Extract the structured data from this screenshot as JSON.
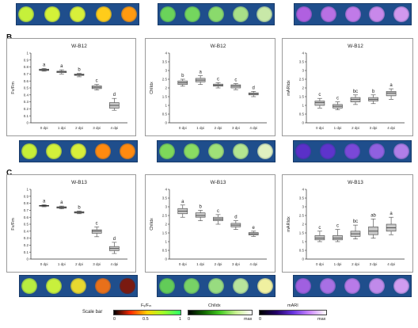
{
  "panel_labels": {
    "b": "B",
    "c": "C"
  },
  "scale_bar": {
    "label": "Scale bar",
    "fvfm": {
      "title": "Fᵥ/Fₘ",
      "ticks": [
        "0",
        "0.5",
        "1"
      ],
      "colors": [
        "#000000",
        "#ff2a00",
        "#ffd200",
        "#9cff2a",
        "#2bff6a"
      ]
    },
    "chlidx": {
      "title": "ChlIdx",
      "ticks": [
        "0",
        "max"
      ],
      "colors": [
        "#000000",
        "#116600",
        "#44cc22",
        "#c8f090",
        "#ffffff"
      ]
    },
    "mari": {
      "title": "mARI",
      "ticks": [
        "0",
        "max"
      ],
      "colors": [
        "#000000",
        "#220066",
        "#6633dd",
        "#cc88ff",
        "#ffffff"
      ]
    }
  },
  "strip_colors": {
    "fvfm_top": [
      "#c6f03a",
      "#d4f238",
      "#d8f03a",
      "#ffcc1a",
      "#ff9a10"
    ],
    "fvfm_b12": [
      "#c8ef38",
      "#d2f03a",
      "#d8ee3a",
      "#ff8a10",
      "#ff8a10"
    ],
    "fvfm_b13": [
      "#b8ee40",
      "#c8f03c",
      "#e8d830",
      "#e8701a",
      "#7a1a10"
    ],
    "chl_top": [
      "#6ad35a",
      "#74d65e",
      "#8ada6c",
      "#a8e088",
      "#c8e8a8"
    ],
    "chl_b12": [
      "#7ed85a",
      "#8adb62",
      "#a0e078",
      "#b4e690",
      "#e0f0c0"
    ],
    "chl_b13": [
      "#62cc58",
      "#78d266",
      "#98dc80",
      "#b8e49c",
      "#f0f0a0"
    ],
    "mari_top": [
      "#b060e0",
      "#b870e4",
      "#c07ae8",
      "#c888ea",
      "#d098ee"
    ],
    "mari_b12": [
      "#5a30c8",
      "#5e34cc",
      "#7a48d8",
      "#9060e0",
      "#b07ee8"
    ],
    "mari_b13": [
      "#a060e0",
      "#a870e4",
      "#b87ae8",
      "#c08aea",
      "#d09cf0"
    ]
  },
  "chart_data": [
    {
      "type": "box",
      "title": "W-B12",
      "ylabel": "Fv/Fm",
      "ylim": [
        0,
        1
      ],
      "yticks": [
        "0",
        "0.1",
        "0.2",
        "0.3",
        "0.4",
        "0.5",
        "0.6",
        "0.7",
        "0.8",
        "0.9",
        "1"
      ],
      "categories": [
        "0 dpi",
        "1 dpi",
        "2 dpi",
        "3 dpi",
        "4 dpi"
      ],
      "letters": [
        "a",
        "a",
        "b",
        "c",
        "d"
      ],
      "boxes": [
        [
          0.74,
          0.75,
          0.76,
          0.77,
          0.78
        ],
        [
          0.7,
          0.72,
          0.73,
          0.74,
          0.76
        ],
        [
          0.66,
          0.68,
          0.69,
          0.7,
          0.71
        ],
        [
          0.47,
          0.49,
          0.51,
          0.53,
          0.55
        ],
        [
          0.18,
          0.21,
          0.25,
          0.29,
          0.35
        ]
      ]
    },
    {
      "type": "box",
      "title": "W-B12",
      "ylabel": "ChlIdx",
      "ylim": [
        0,
        4
      ],
      "yticks": [
        "0",
        "0.5",
        "1",
        "1.5",
        "2",
        "2.5",
        "3",
        "3.5",
        "4"
      ],
      "categories": [
        "0 dpi",
        "1 dpi",
        "2 dpi",
        "3 dpi",
        "4 dpi"
      ],
      "letters": [
        "b",
        "a",
        "c",
        "c",
        "d"
      ],
      "boxes": [
        [
          2.1,
          2.2,
          2.3,
          2.4,
          2.5
        ],
        [
          2.2,
          2.35,
          2.45,
          2.55,
          2.7
        ],
        [
          2.0,
          2.1,
          2.15,
          2.22,
          2.3
        ],
        [
          1.9,
          2.0,
          2.1,
          2.18,
          2.25
        ],
        [
          1.5,
          1.6,
          1.65,
          1.72,
          1.8
        ]
      ]
    },
    {
      "type": "box",
      "title": "W-B12",
      "ylabel": "mARIdx",
      "ylim": [
        0,
        4
      ],
      "yticks": [
        "0",
        "0.5",
        "1",
        "1.5",
        "2",
        "2.5",
        "3",
        "3.5",
        "4"
      ],
      "categories": [
        "0 dpi",
        "1 dpi",
        "2 dpi",
        "3 dpi",
        "4 dpi"
      ],
      "letters": [
        "c",
        "c",
        "bc",
        "b",
        "a"
      ],
      "boxes": [
        [
          0.85,
          1.0,
          1.15,
          1.25,
          1.4
        ],
        [
          0.75,
          0.85,
          0.95,
          1.05,
          1.2
        ],
        [
          1.05,
          1.2,
          1.35,
          1.45,
          1.6
        ],
        [
          1.1,
          1.25,
          1.35,
          1.45,
          1.6
        ],
        [
          1.35,
          1.55,
          1.7,
          1.8,
          1.95
        ]
      ]
    },
    {
      "type": "box",
      "title": "W-B13",
      "ylabel": "Fv/Fm",
      "ylim": [
        0,
        1
      ],
      "yticks": [
        "0",
        "0.1",
        "0.2",
        "0.3",
        "0.4",
        "0.5",
        "0.6",
        "0.7",
        "0.8",
        "0.9",
        "1"
      ],
      "categories": [
        "0 dpi",
        "1 dpi",
        "2 dpi",
        "3 dpi",
        "4 dpi"
      ],
      "letters": [
        "a",
        "a",
        "b",
        "c",
        "d"
      ],
      "boxes": [
        [
          0.75,
          0.76,
          0.765,
          0.77,
          0.78
        ],
        [
          0.72,
          0.73,
          0.74,
          0.75,
          0.76
        ],
        [
          0.65,
          0.66,
          0.67,
          0.68,
          0.69
        ],
        [
          0.32,
          0.37,
          0.4,
          0.42,
          0.46
        ],
        [
          0.08,
          0.12,
          0.15,
          0.18,
          0.24
        ]
      ]
    },
    {
      "type": "box",
      "title": "W-B13",
      "ylabel": "ChlIdx",
      "ylim": [
        0,
        4
      ],
      "yticks": [
        "0",
        "0.5",
        "1",
        "1.5",
        "2",
        "2.5",
        "3",
        "3.5",
        "4"
      ],
      "categories": [
        "0 dpi",
        "1 dpi",
        "2 dpi",
        "3 dpi",
        "4 dpi"
      ],
      "letters": [
        "a",
        "b",
        "c",
        "d",
        "e"
      ],
      "boxes": [
        [
          2.4,
          2.6,
          2.75,
          2.9,
          3.1
        ],
        [
          2.2,
          2.4,
          2.5,
          2.65,
          2.8
        ],
        [
          2.0,
          2.2,
          2.3,
          2.4,
          2.55
        ],
        [
          1.7,
          1.85,
          1.95,
          2.05,
          2.2
        ],
        [
          1.3,
          1.38,
          1.45,
          1.52,
          1.6
        ]
      ]
    },
    {
      "type": "box",
      "title": "W-B13",
      "ylabel": "mARIdx",
      "ylim": [
        0,
        4
      ],
      "yticks": [
        "0",
        "0.5",
        "1",
        "1.5",
        "2",
        "2.5",
        "3",
        "3.5",
        "4"
      ],
      "categories": [
        "0 dpi",
        "1 dpi",
        "2 dpi",
        "3 dpi",
        "4 dpi"
      ],
      "letters": [
        "c",
        "c",
        "bc",
        "ab",
        "a"
      ],
      "boxes": [
        [
          1.0,
          1.1,
          1.2,
          1.35,
          1.6
        ],
        [
          1.0,
          1.1,
          1.2,
          1.35,
          1.7
        ],
        [
          1.15,
          1.3,
          1.45,
          1.6,
          1.95
        ],
        [
          1.2,
          1.4,
          1.6,
          1.85,
          2.3
        ],
        [
          1.4,
          1.6,
          1.8,
          2.0,
          2.4
        ]
      ]
    }
  ]
}
